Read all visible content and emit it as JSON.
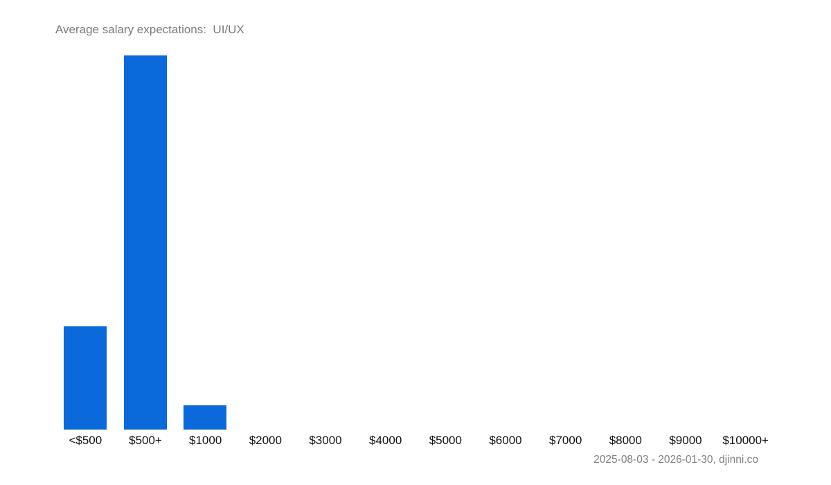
{
  "chart_data": {
    "type": "bar",
    "title": "Average salary expectations:  UI/UX",
    "categories": [
      "<$500",
      "$500+",
      "$1000",
      "$2000",
      "$3000",
      "$4000",
      "$5000",
      "$6000",
      "$7000",
      "$8000",
      "$9000",
      "$10000+"
    ],
    "values": [
      27.6,
      100,
      6.5,
      0,
      0,
      0,
      0,
      0,
      0,
      0,
      0,
      0
    ],
    "value_units": "relative share (% of tallest bar), no y-axis shown",
    "xlabel": "",
    "ylabel": "",
    "ylim": [
      0,
      100
    ],
    "grid": false,
    "legend": null,
    "bar_color": "#0a6adc",
    "footer": "2025-08-03 - 2026-01-30, djinni.co"
  },
  "header": {
    "title": "Average salary expectations:  UI/UX"
  },
  "footer": {
    "text": "2025-08-03 - 2026-01-30, djinni.co"
  }
}
